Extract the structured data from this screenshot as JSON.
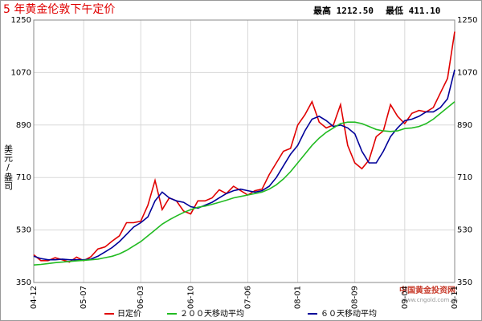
{
  "chart_data": {
    "type": "line",
    "title": "5 年黄金伦敦下午定价",
    "annotations": [
      "最高 1212.50",
      "最低 411.10",
      "中国黄金投资网",
      "www.cngold.com.cn"
    ],
    "ylabel": "美元/盎司",
    "categories": [
      "04-12",
      null,
      null,
      null,
      null,
      null,
      null,
      "05-07",
      null,
      null,
      null,
      null,
      null,
      null,
      null,
      "06-03",
      null,
      null,
      null,
      null,
      null,
      null,
      "06-10",
      null,
      null,
      null,
      null,
      null,
      null,
      null,
      "07-06",
      null,
      null,
      null,
      null,
      null,
      null,
      "08-01",
      null,
      null,
      null,
      null,
      null,
      null,
      null,
      "08-09",
      null,
      null,
      null,
      null,
      null,
      null,
      "09-04",
      null,
      null,
      null,
      null,
      null,
      null,
      "09-11"
    ],
    "series": [
      {
        "name": "日定价",
        "color": "#e00000",
        "values": [
          445,
          425,
          425,
          435,
          428,
          420,
          437,
          425,
          438,
          465,
          472,
          492,
          510,
          555,
          555,
          560,
          615,
          700,
          600,
          640,
          630,
          595,
          585,
          630,
          630,
          640,
          668,
          655,
          680,
          665,
          650,
          665,
          670,
          720,
          760,
          800,
          810,
          890,
          925,
          970,
          900,
          880,
          890,
          960,
          820,
          760,
          740,
          770,
          850,
          870,
          960,
          920,
          895,
          930,
          940,
          935,
          950,
          1000,
          1050,
          1210
        ]
      },
      {
        "name": "２００天移动平均",
        "color": "#22bb22",
        "values": [
          410,
          412,
          415,
          418,
          420,
          422,
          424,
          426,
          428,
          430,
          435,
          440,
          448,
          460,
          475,
          490,
          510,
          530,
          550,
          565,
          578,
          590,
          600,
          608,
          612,
          618,
          625,
          632,
          640,
          645,
          650,
          655,
          660,
          670,
          685,
          705,
          730,
          760,
          790,
          820,
          845,
          865,
          880,
          895,
          900,
          900,
          895,
          885,
          875,
          870,
          868,
          870,
          878,
          880,
          885,
          895,
          910,
          930,
          950,
          970
        ]
      },
      {
        "name": "６０天移动平均",
        "color": "#000099",
        "values": [
          440,
          432,
          428,
          428,
          430,
          428,
          428,
          428,
          430,
          440,
          455,
          470,
          490,
          515,
          540,
          555,
          575,
          630,
          660,
          640,
          630,
          625,
          610,
          605,
          615,
          625,
          640,
          655,
          665,
          670,
          665,
          660,
          665,
          680,
          710,
          750,
          790,
          820,
          870,
          910,
          920,
          905,
          885,
          890,
          880,
          860,
          800,
          760,
          760,
          800,
          850,
          880,
          905,
          910,
          920,
          935,
          935,
          950,
          980,
          1080
        ]
      }
    ],
    "ylim": [
      350,
      1250
    ],
    "yticks": [
      350,
      530,
      710,
      890,
      1070,
      1250
    ],
    "grid": true
  }
}
